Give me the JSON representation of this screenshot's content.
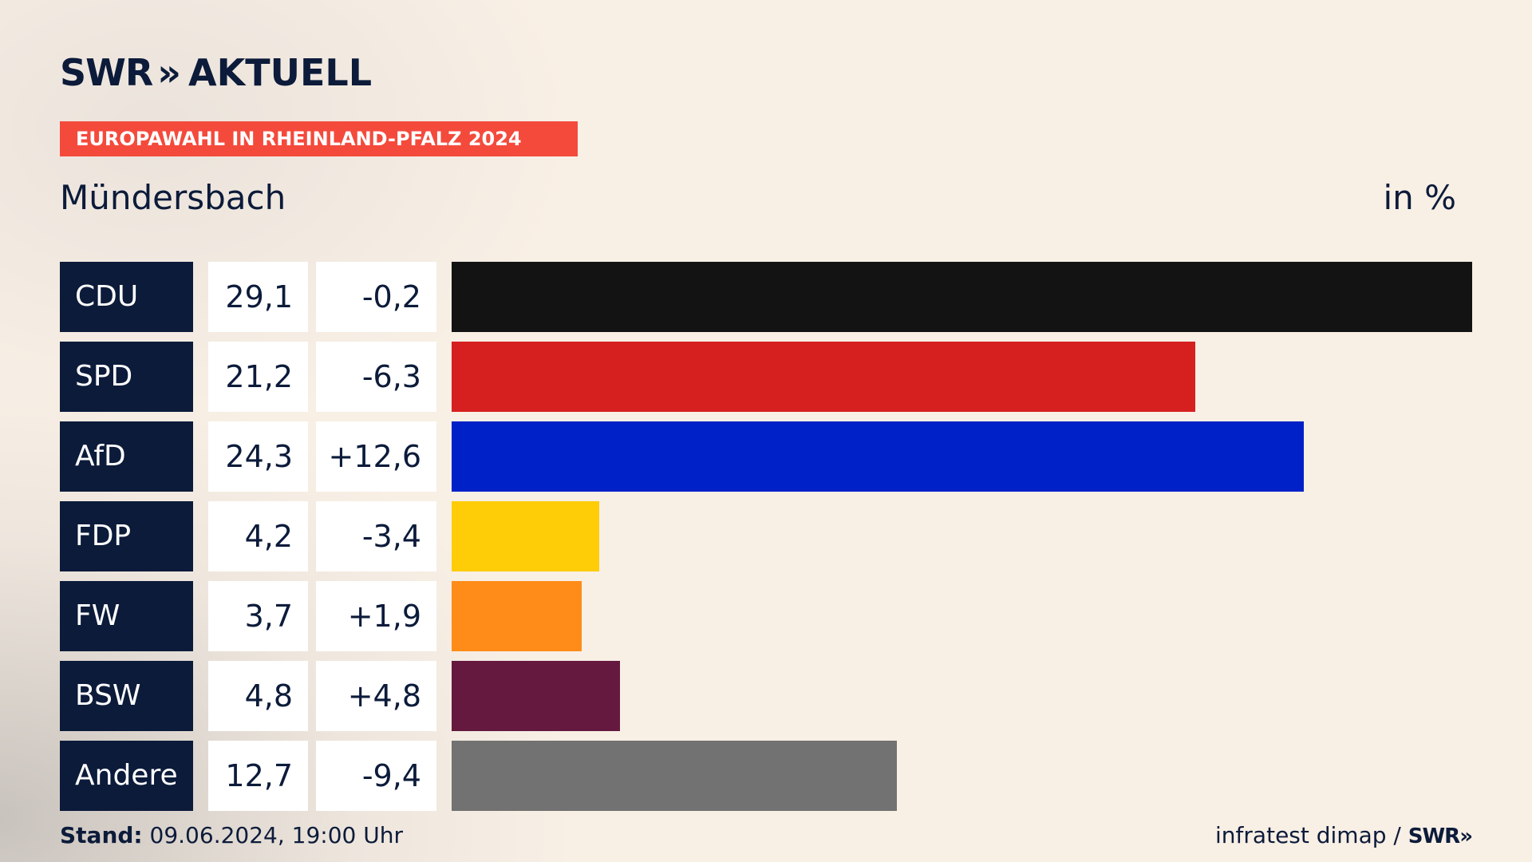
{
  "brand": {
    "name": "SWR",
    "chevrons": "»",
    "product": "AKTUELL"
  },
  "badge": "EUROPAWAHL IN RHEINLAND-PFALZ 2024",
  "place": "Mündersbach",
  "unit": "in %",
  "chart_data": {
    "type": "bar",
    "orientation": "horizontal",
    "categories": [
      "CDU",
      "SPD",
      "AfD",
      "FDP",
      "FW",
      "BSW",
      "Andere"
    ],
    "values": [
      29.1,
      21.2,
      24.3,
      4.2,
      3.7,
      4.8,
      12.7
    ],
    "value_labels": [
      "29,1",
      "21,2",
      "24,3",
      "4,2",
      "3,7",
      "4,8",
      "12,7"
    ],
    "diff_labels": [
      "-0,2",
      "-6,3",
      "+12,6",
      "-3,4",
      "+1,9",
      "+4,8",
      "-9,4"
    ],
    "colors": [
      "#131313",
      "#d61f1f",
      "#0021c7",
      "#ffcc08",
      "#ff8c19",
      "#65193f",
      "#727272"
    ],
    "xlim": [
      0,
      29.1
    ]
  },
  "footer": {
    "stand_label": "Stand:",
    "stand_value": "09.06.2024, 19:00 Uhr",
    "source": "infratest dimap /",
    "source_logo": "SWR»"
  }
}
